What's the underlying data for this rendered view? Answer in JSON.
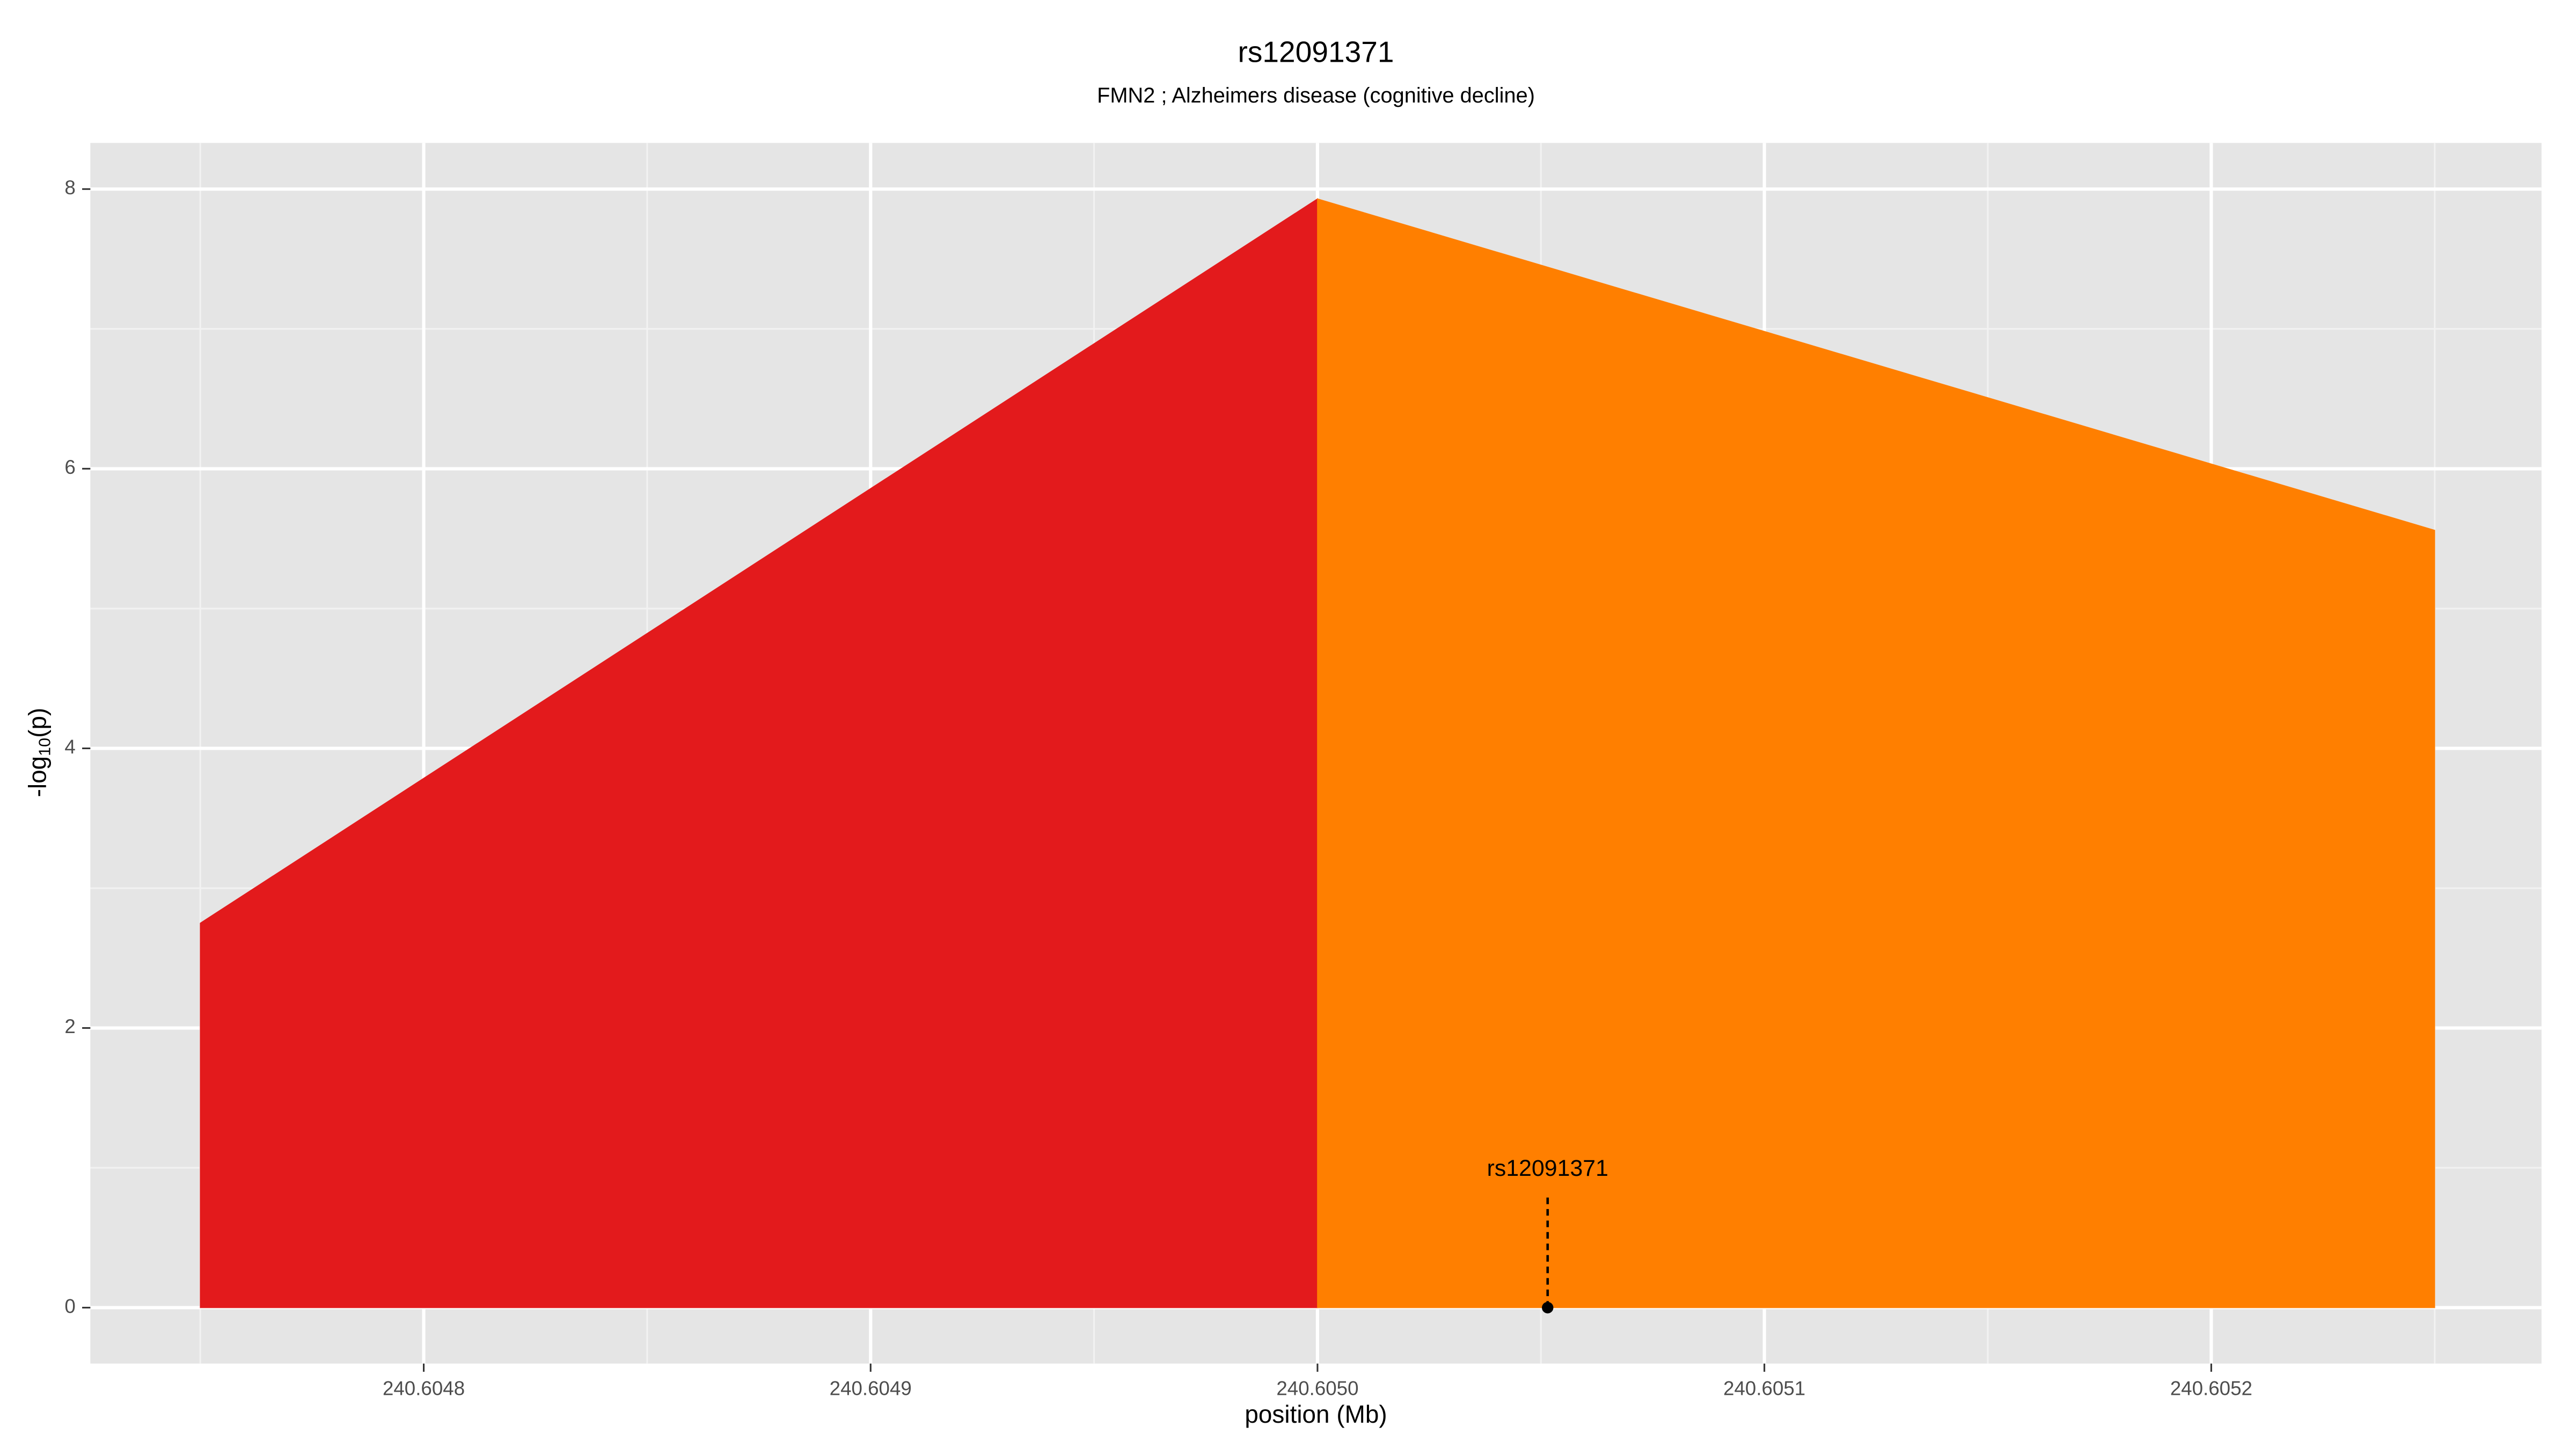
{
  "chart_data": {
    "type": "area",
    "title": "rs12091371",
    "subtitle": "FMN2 ; Alzheimers disease (cognitive decline)",
    "xlabel": "position (Mb)",
    "ylabel": [
      "-log",
      "10",
      "(p)"
    ],
    "x": [
      240.60475,
      240.605,
      240.60525
    ],
    "series": [
      {
        "color": "#e31a1c",
        "values": [
          2.75,
          7.93,
          null
        ]
      },
      {
        "color": "#ff7f00",
        "values": [
          null,
          7.93,
          5.56
        ]
      }
    ],
    "annotations": [
      {
        "text": "rs12091371",
        "x": 240.6050515,
        "y": 0
      }
    ],
    "xlim": [
      240.6047254,
      240.6052739
    ],
    "ylim": [
      -0.4,
      8.33
    ],
    "xticks": [
      240.6048,
      240.6049,
      {
        "value": 240.605,
        "label": "240.6050"
      },
      240.6051,
      240.6052
    ],
    "yticks": [
      0,
      2,
      4,
      6,
      8
    ],
    "grid": true
  }
}
